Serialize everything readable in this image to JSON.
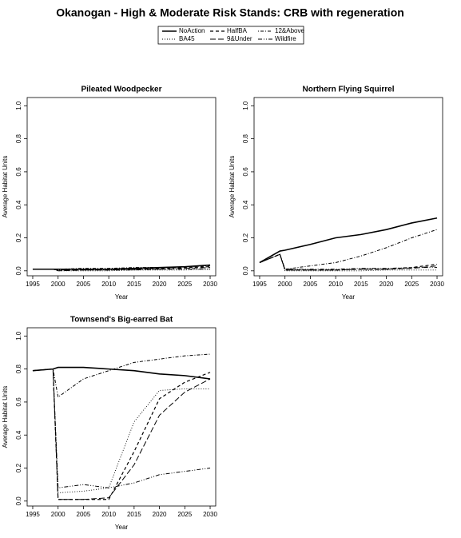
{
  "title": "Okanogan  - High & Moderate Risk Stands: CRB with regeneration",
  "chart_data": [
    {
      "type": "line",
      "title": "Pileated Woodpecker",
      "xlabel": "Year",
      "ylabel": "Average Habitat Units",
      "x": [
        1995,
        1999,
        2000,
        2005,
        2010,
        2015,
        2020,
        2025,
        2030
      ],
      "xlim": [
        1993.9,
        2031.1
      ],
      "ylim": [
        -0.03,
        1.05
      ],
      "xticks": [
        1995,
        2000,
        2005,
        2010,
        2015,
        2020,
        2025,
        2030
      ],
      "yticks": [
        {
          "value": 0,
          "label": "0.0"
        },
        0.2,
        0.4,
        0.6,
        0.8,
        {
          "value": 1,
          "label": "1.0"
        }
      ],
      "series": [
        {
          "name": "NoAction",
          "color": "#000000",
          "linestyle": "solid",
          "values": [
            0.01,
            0.01,
            0.01,
            0.01,
            0.01,
            0.015,
            0.02,
            0.025,
            0.035
          ]
        },
        {
          "name": "BA45",
          "color": "#000000",
          "linestyle": "dotted",
          "values": [
            0.01,
            0.01,
            0.0,
            0.0,
            0.0,
            0.005,
            0.005,
            0.005,
            0.01
          ]
        },
        {
          "name": "HalfBA",
          "color": "#000000",
          "linestyle": "dashed",
          "values": [
            0.01,
            0.01,
            0.005,
            0.01,
            0.01,
            0.01,
            0.015,
            0.02,
            0.025
          ]
        },
        {
          "name": "9&Under",
          "color": "#000000",
          "linestyle": "longdash",
          "values": [
            0.01,
            0.01,
            0.0,
            0.005,
            0.005,
            0.01,
            0.01,
            0.015,
            0.02
          ]
        },
        {
          "name": "12&Above",
          "color": "#000000",
          "linestyle": "dotdash",
          "values": [
            0.01,
            0.01,
            0.01,
            0.015,
            0.015,
            0.02,
            0.02,
            0.025,
            0.03
          ]
        },
        {
          "name": "Wildfire",
          "color": "#000000",
          "linestyle": "twodash",
          "values": [
            0.01,
            0.01,
            0.005,
            0.005,
            0.005,
            0.005,
            0.01,
            0.01,
            0.01
          ]
        }
      ]
    },
    {
      "type": "line",
      "title": "Northern Flying Squirrel",
      "xlabel": "Year",
      "ylabel": "Average Habitat Units",
      "x": [
        1995,
        1999,
        2000,
        2005,
        2010,
        2015,
        2020,
        2025,
        2030
      ],
      "xlim": [
        1993.9,
        2031.1
      ],
      "ylim": [
        -0.03,
        1.05
      ],
      "xticks": [
        1995,
        2000,
        2005,
        2010,
        2015,
        2020,
        2025,
        2030
      ],
      "yticks": [
        {
          "value": 0,
          "label": "0.0"
        },
        0.2,
        0.4,
        0.6,
        0.8,
        {
          "value": 1,
          "label": "1.0"
        }
      ],
      "series": [
        {
          "name": "NoAction",
          "color": "#000000",
          "linestyle": "solid",
          "values": [
            0.05,
            0.12,
            0.125,
            0.16,
            0.2,
            0.22,
            0.25,
            0.29,
            0.32
          ]
        },
        {
          "name": "BA45",
          "color": "#000000",
          "linestyle": "dotted",
          "values": [
            0.05,
            0.1,
            0.0,
            0.0,
            0.0,
            0.0,
            0.005,
            0.005,
            0.005
          ]
        },
        {
          "name": "HalfBA",
          "color": "#000000",
          "linestyle": "dashed",
          "values": [
            0.05,
            0.1,
            0.005,
            0.005,
            0.005,
            0.01,
            0.01,
            0.02,
            0.04
          ]
        },
        {
          "name": "9&Under",
          "color": "#000000",
          "linestyle": "longdash",
          "values": [
            0.05,
            0.1,
            0.005,
            0.005,
            0.005,
            0.01,
            0.01,
            0.015,
            0.03
          ]
        },
        {
          "name": "12&Above",
          "color": "#000000",
          "linestyle": "dotdash",
          "values": [
            0.05,
            0.1,
            0.01,
            0.03,
            0.05,
            0.09,
            0.14,
            0.2,
            0.25
          ]
        },
        {
          "name": "Wildfire",
          "color": "#000000",
          "linestyle": "twodash",
          "values": [
            0.05,
            0.1,
            0.01,
            0.01,
            0.01,
            0.015,
            0.015,
            0.02,
            0.02
          ]
        }
      ]
    },
    {
      "type": "line",
      "title": "Townsend's Big-earred Bat",
      "xlabel": "Year",
      "ylabel": "Average Habitat Units",
      "x": [
        1995,
        1999,
        2000,
        2005,
        2010,
        2015,
        2020,
        2025,
        2030
      ],
      "xlim": [
        1993.9,
        2031.1
      ],
      "ylim": [
        -0.03,
        1.05
      ],
      "xticks": [
        1995,
        2000,
        2005,
        2010,
        2015,
        2020,
        2025,
        2030
      ],
      "yticks": [
        {
          "value": 0,
          "label": "0.0"
        },
        0.2,
        0.4,
        0.6,
        0.8,
        {
          "value": 1,
          "label": "1.0"
        }
      ],
      "series": [
        {
          "name": "NoAction",
          "color": "#000000",
          "linestyle": "solid",
          "values": [
            0.79,
            0.8,
            0.81,
            0.81,
            0.8,
            0.79,
            0.77,
            0.76,
            0.74
          ]
        },
        {
          "name": "BA45",
          "color": "#000000",
          "linestyle": "dotted",
          "values": [
            0.79,
            0.8,
            0.05,
            0.06,
            0.08,
            0.48,
            0.67,
            0.68,
            0.68
          ]
        },
        {
          "name": "HalfBA",
          "color": "#000000",
          "linestyle": "dashed",
          "values": [
            0.79,
            0.8,
            0.01,
            0.01,
            0.01,
            0.3,
            0.62,
            0.72,
            0.78
          ]
        },
        {
          "name": "9&Under",
          "color": "#000000",
          "linestyle": "longdash",
          "values": [
            0.79,
            0.8,
            0.01,
            0.01,
            0.02,
            0.22,
            0.52,
            0.66,
            0.74
          ]
        },
        {
          "name": "12&Above",
          "color": "#000000",
          "linestyle": "dotdash",
          "values": [
            0.79,
            0.8,
            0.63,
            0.74,
            0.79,
            0.84,
            0.86,
            0.88,
            0.89
          ]
        },
        {
          "name": "Wildfire",
          "color": "#000000",
          "linestyle": "twodash",
          "values": [
            0.79,
            0.8,
            0.08,
            0.1,
            0.08,
            0.11,
            0.16,
            0.18,
            0.2
          ]
        }
      ]
    }
  ]
}
